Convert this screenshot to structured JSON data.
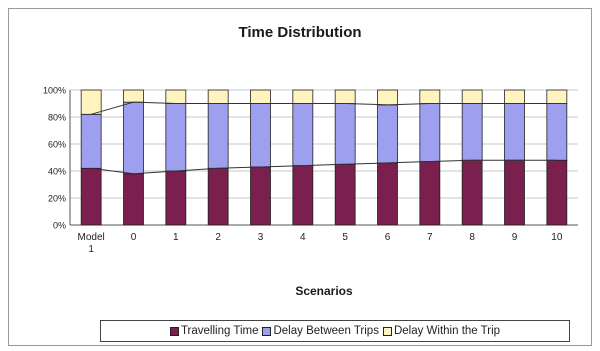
{
  "chart_data": {
    "type": "bar",
    "stacked": true,
    "normalized": true,
    "title": "Time Distribution",
    "xlabel": "Scenarios",
    "ylabel": "",
    "ylim": [
      0,
      100
    ],
    "yticks": [
      "0%",
      "20%",
      "40%",
      "60%",
      "80%",
      "100%"
    ],
    "categories": [
      "Model 1",
      "0",
      "1",
      "2",
      "3",
      "4",
      "5",
      "6",
      "7",
      "8",
      "9",
      "10"
    ],
    "series": [
      {
        "name": "Travelling Time",
        "color": "#7a1f4e",
        "values": [
          42,
          38,
          40,
          42,
          43,
          44,
          45,
          46,
          47,
          48,
          48,
          48
        ]
      },
      {
        "name": "Delay Between Trips",
        "color": "#9f9ff0",
        "values": [
          40,
          53,
          50,
          48,
          47,
          46,
          45,
          43,
          43,
          42,
          42,
          42
        ]
      },
      {
        "name": "Delay Within the Trip",
        "color": "#fff3c0",
        "values": [
          18,
          9,
          10,
          10,
          10,
          10,
          10,
          11,
          10,
          10,
          10,
          10
        ]
      }
    ],
    "grid": true,
    "legend_position": "bottom"
  }
}
